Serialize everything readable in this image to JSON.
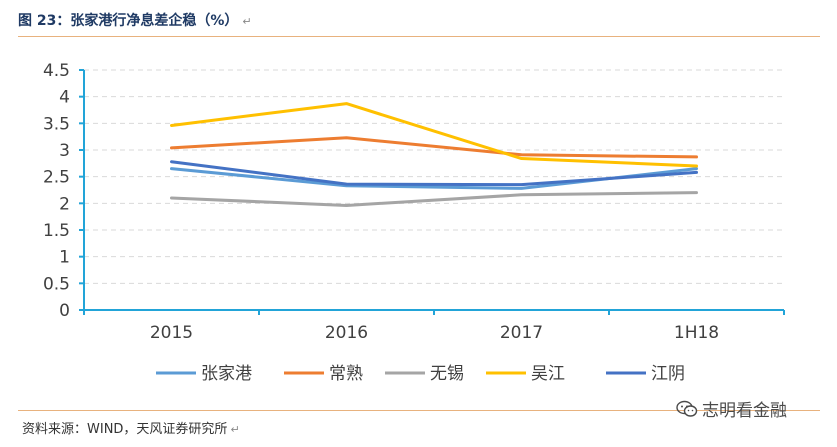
{
  "header": {
    "title": "图 23：张家港行净息差企稳（%）",
    "return_mark": "↵"
  },
  "footer": {
    "source": "资料来源：WIND，天风证券研究所",
    "return_mark": "↵",
    "watermark": "志明看金融",
    "watermark_icon": "wechat-icon"
  },
  "chart_data": {
    "type": "line",
    "title": "张家港行净息差企稳（%）",
    "xlabel": "",
    "ylabel": "",
    "categories": [
      "2015",
      "2016",
      "2017",
      "1H18"
    ],
    "ylim": [
      0,
      4.5
    ],
    "yticks": [
      "0",
      "0.5",
      "1",
      "1.5",
      "2",
      "2.5",
      "3",
      "3.5",
      "4",
      "4.5"
    ],
    "grid": true,
    "legend_position": "bottom",
    "series": [
      {
        "name": "张家港",
        "color": "#5b9bd5",
        "values": [
          2.65,
          2.33,
          2.28,
          2.65
        ]
      },
      {
        "name": "常熟",
        "color": "#ed7d31",
        "values": [
          3.04,
          3.23,
          2.91,
          2.87
        ]
      },
      {
        "name": "无锡",
        "color": "#a5a5a5",
        "values": [
          2.1,
          1.96,
          2.16,
          2.2
        ]
      },
      {
        "name": "吴江",
        "color": "#ffc000",
        "values": [
          3.46,
          3.87,
          2.84,
          2.7
        ]
      },
      {
        "name": "江阴",
        "color": "#4472c4",
        "values": [
          2.78,
          2.36,
          2.35,
          2.58
        ]
      }
    ]
  }
}
